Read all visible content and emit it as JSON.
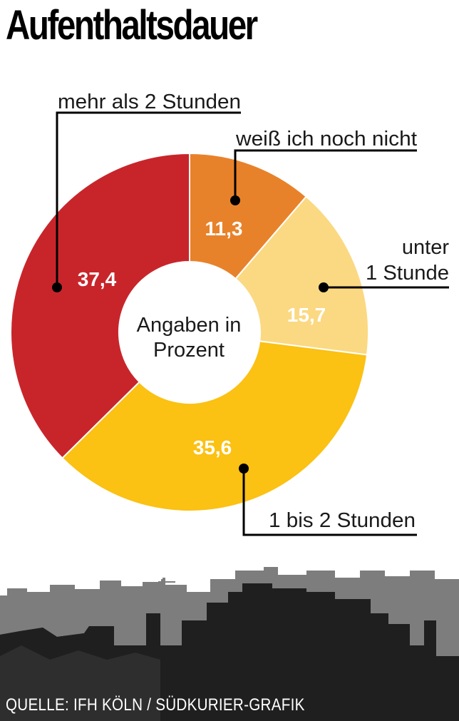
{
  "chart_data": {
    "type": "pie",
    "title": "Aufenthaltsdauer",
    "center_label": [
      "Angaben in",
      "Prozent"
    ],
    "slices": [
      {
        "label": "weiß ich noch nicht",
        "value": 11.3,
        "value_label": "11,3",
        "color": "#e8822a"
      },
      {
        "label": "unter 1 Stunde",
        "value": 15.7,
        "value_label": "15,7",
        "color": "#fbd982"
      },
      {
        "label": "1 bis 2 Stunden",
        "value": 35.6,
        "value_label": "35,6",
        "color": "#fbc113"
      },
      {
        "label": "mehr als 2 Stunden",
        "value": 37.4,
        "value_label": "37,4",
        "color": "#c8252b"
      }
    ]
  },
  "callouts": {
    "mehr": "mehr als 2 Stunden",
    "weiss": "weiß ich noch nicht",
    "unter_line1": "unter",
    "unter_line2": "1 Stunde",
    "bis": "1 bis 2 Stunden"
  },
  "source": "QUELLE: IFH KÖLN / SÜDKURIER-GRAFIK"
}
